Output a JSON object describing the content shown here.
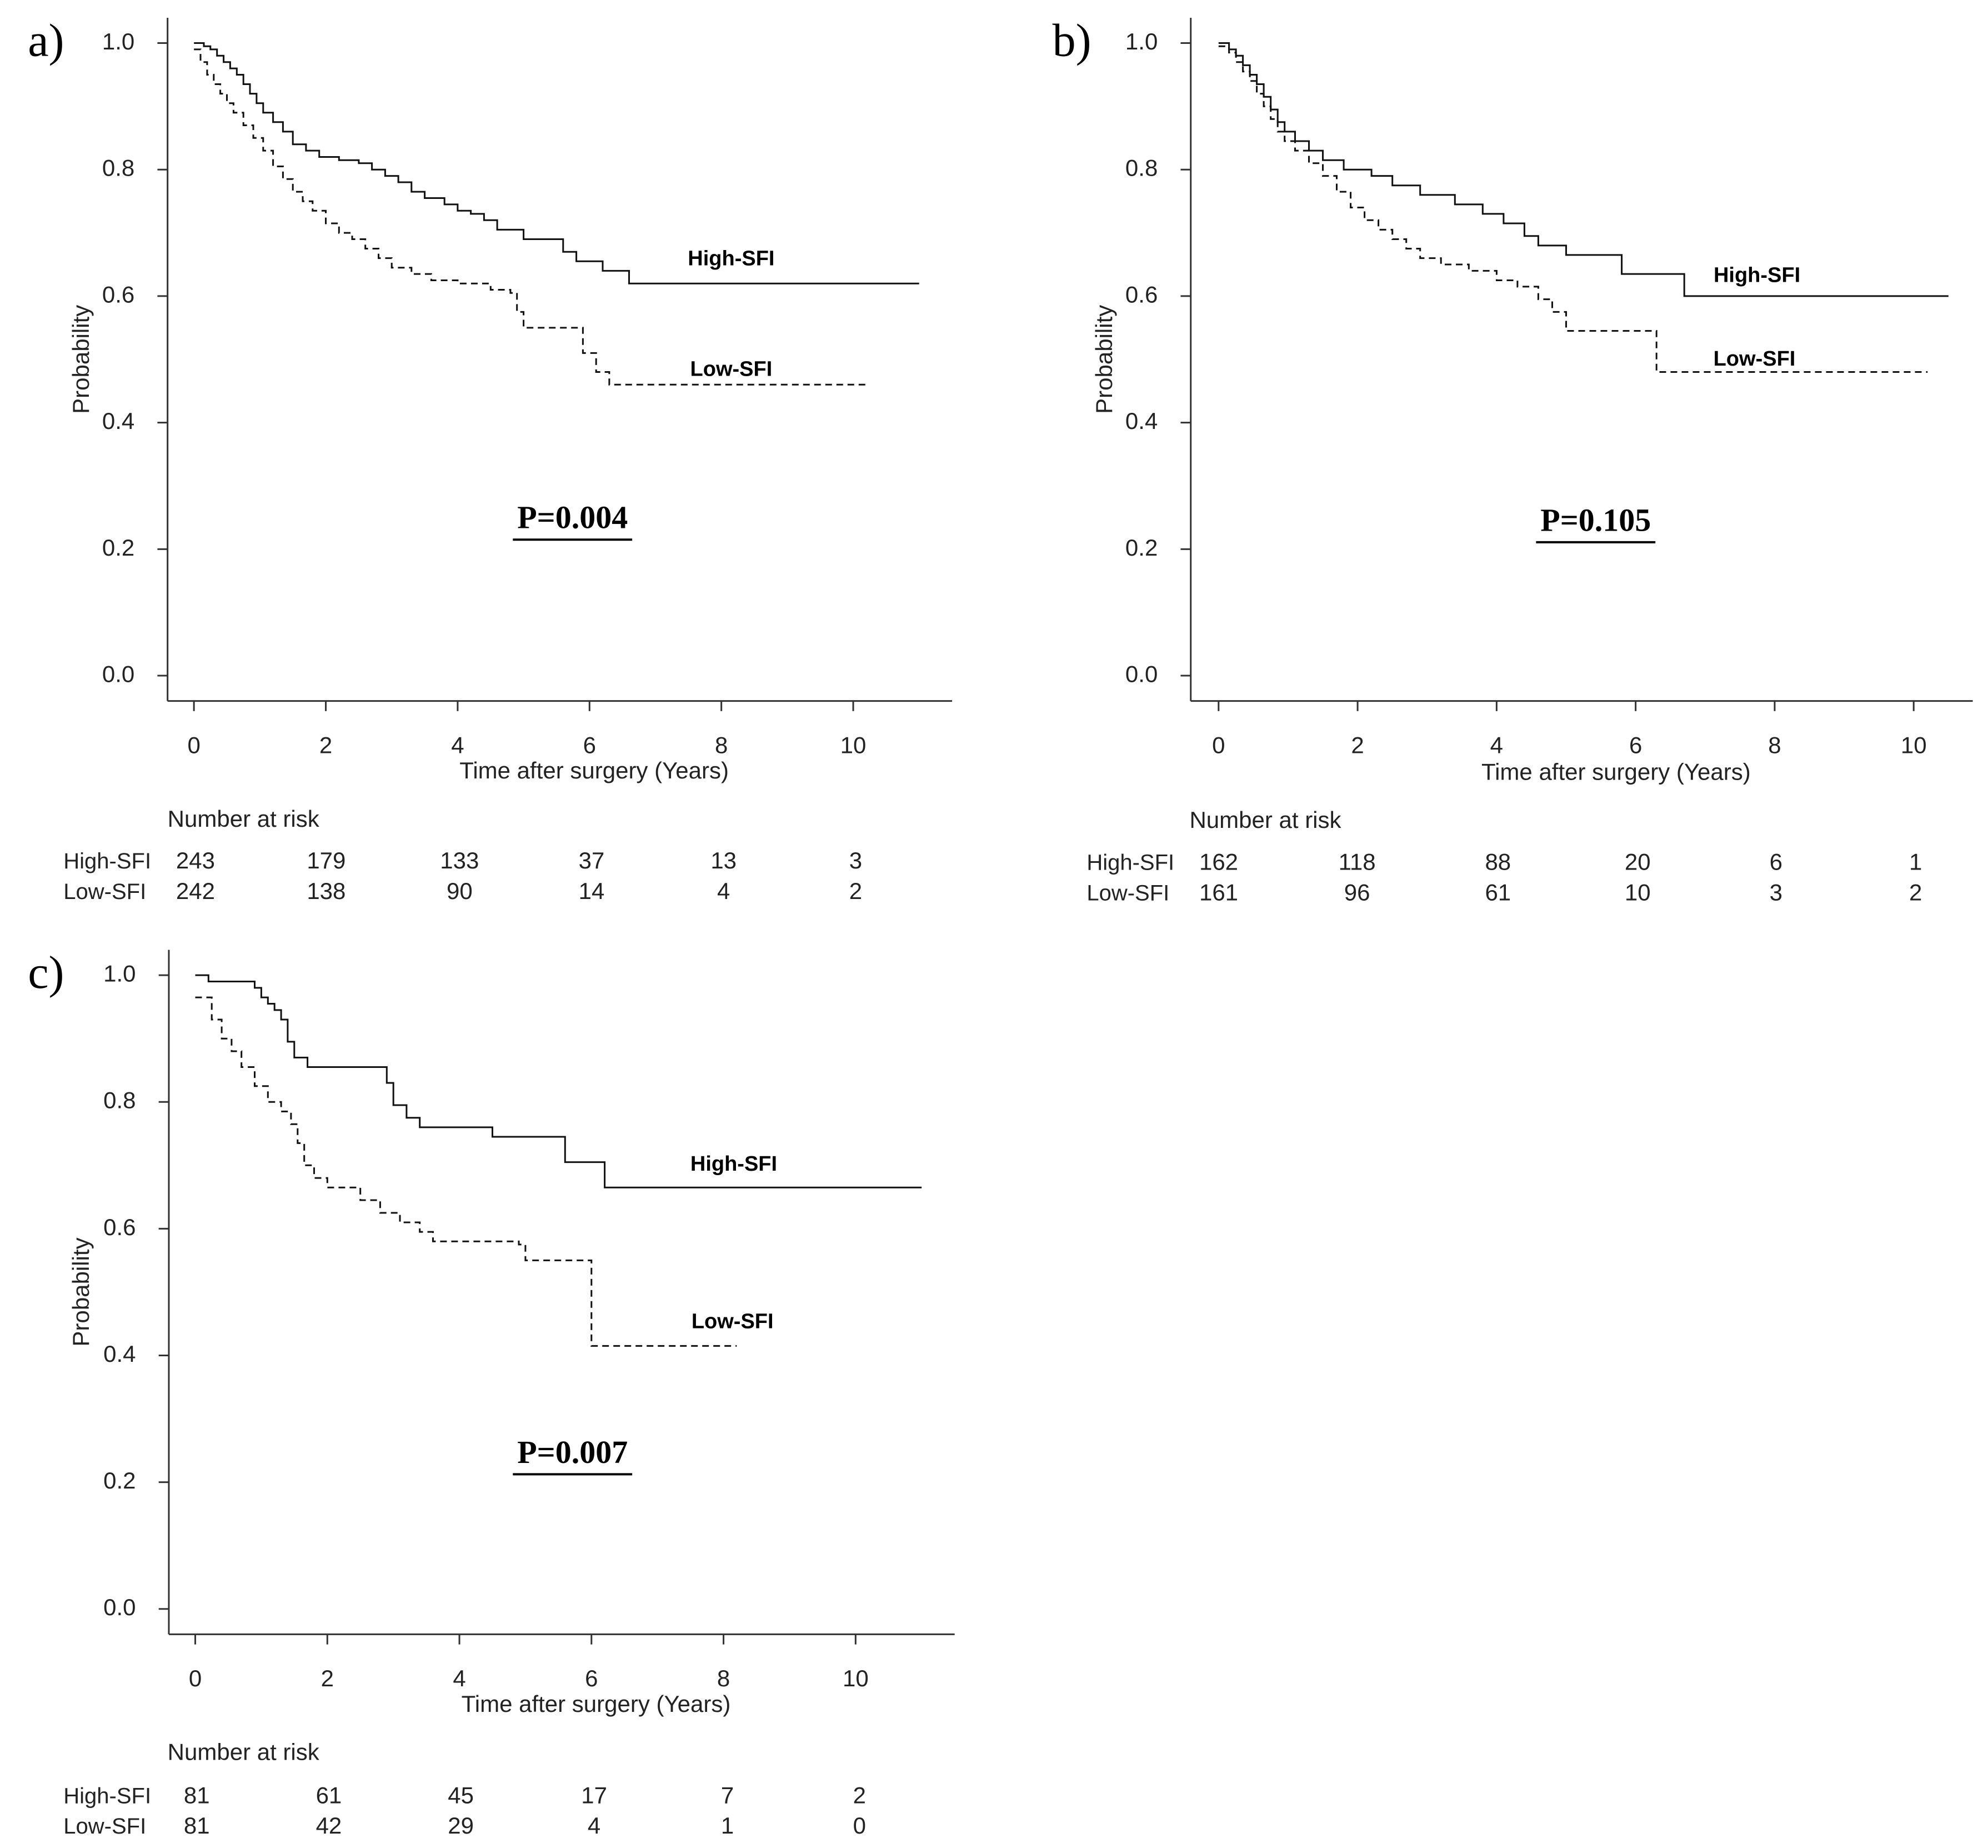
{
  "chart_data": [
    {
      "type": "line",
      "panel_label": "a)",
      "xlabel": "Time after surgery (Years)",
      "ylabel": "Probability",
      "xlim": [
        -0.4,
        11.5
      ],
      "ylim": [
        -0.04,
        1.04
      ],
      "x_ticks": [
        0,
        2,
        4,
        6,
        8,
        10
      ],
      "y_ticks": [
        "0.0",
        "0.2",
        "0.4",
        "0.6",
        "0.8",
        "1.0"
      ],
      "p_value": "P=0.004",
      "series": [
        {
          "name": "High-SFI",
          "style": "solid",
          "x": [
            0,
            0.15,
            0.25,
            0.35,
            0.45,
            0.55,
            0.65,
            0.75,
            0.85,
            0.95,
            1.05,
            1.2,
            1.35,
            1.5,
            1.7,
            1.9,
            2.2,
            2.5,
            2.7,
            2.9,
            3.1,
            3.3,
            3.5,
            3.8,
            4.0,
            4.2,
            4.4,
            4.6,
            5.0,
            5.6,
            5.8,
            6.2,
            6.6,
            11.0
          ],
          "y": [
            1.0,
            0.995,
            0.99,
            0.98,
            0.97,
            0.96,
            0.95,
            0.935,
            0.92,
            0.905,
            0.89,
            0.875,
            0.86,
            0.84,
            0.83,
            0.82,
            0.815,
            0.81,
            0.8,
            0.79,
            0.78,
            0.765,
            0.755,
            0.745,
            0.735,
            0.73,
            0.72,
            0.705,
            0.69,
            0.67,
            0.655,
            0.64,
            0.62,
            0.62
          ]
        },
        {
          "name": "Low-SFI",
          "style": "dashed",
          "x": [
            0,
            0.1,
            0.2,
            0.3,
            0.4,
            0.5,
            0.6,
            0.75,
            0.9,
            1.05,
            1.2,
            1.35,
            1.5,
            1.65,
            1.8,
            2.0,
            2.2,
            2.4,
            2.6,
            2.8,
            3.0,
            3.3,
            3.6,
            4.0,
            4.5,
            4.8,
            4.9,
            5.0,
            5.9,
            6.1,
            6.3,
            10.2
          ],
          "y": [
            0.99,
            0.97,
            0.95,
            0.935,
            0.92,
            0.905,
            0.89,
            0.87,
            0.85,
            0.83,
            0.805,
            0.785,
            0.765,
            0.75,
            0.735,
            0.715,
            0.7,
            0.69,
            0.675,
            0.66,
            0.645,
            0.635,
            0.625,
            0.62,
            0.61,
            0.605,
            0.575,
            0.55,
            0.51,
            0.48,
            0.46,
            0.46
          ]
        }
      ],
      "risk_table": {
        "title": "Number at risk",
        "rows": [
          {
            "label": "High-SFI",
            "values": [
              "243",
              "179",
              "133",
              "37",
              "13",
              "3"
            ]
          },
          {
            "label": "Low-SFI",
            "values": [
              "242",
              "138",
              "90",
              "14",
              "4",
              "2"
            ]
          }
        ]
      }
    },
    {
      "type": "line",
      "panel_label": "b)",
      "xlabel": "Time after surgery (Years)",
      "ylabel": "Probability",
      "xlim": [
        -0.4,
        10.85
      ],
      "ylim": [
        -0.04,
        1.04
      ],
      "x_ticks": [
        0,
        2,
        4,
        6,
        8,
        10
      ],
      "y_ticks": [
        "0.0",
        "0.2",
        "0.4",
        "0.6",
        "0.8",
        "1.0"
      ],
      "p_value": "P=0.105",
      "series": [
        {
          "name": "High-SFI",
          "style": "solid",
          "x": [
            0,
            0.15,
            0.25,
            0.35,
            0.45,
            0.55,
            0.65,
            0.75,
            0.85,
            0.95,
            1.1,
            1.3,
            1.5,
            1.8,
            2.2,
            2.5,
            2.9,
            3.4,
            3.8,
            4.1,
            4.4,
            4.6,
            5.0,
            5.8,
            6.7,
            10.5
          ],
          "y": [
            1.0,
            0.99,
            0.98,
            0.965,
            0.95,
            0.935,
            0.915,
            0.895,
            0.875,
            0.86,
            0.845,
            0.83,
            0.815,
            0.8,
            0.79,
            0.775,
            0.76,
            0.745,
            0.73,
            0.715,
            0.695,
            0.68,
            0.665,
            0.635,
            0.6,
            0.6
          ]
        },
        {
          "name": "Low-SFI",
          "style": "dashed",
          "x": [
            0,
            0.15,
            0.25,
            0.35,
            0.45,
            0.55,
            0.65,
            0.75,
            0.85,
            0.95,
            1.1,
            1.3,
            1.5,
            1.7,
            1.9,
            2.1,
            2.3,
            2.5,
            2.7,
            2.9,
            3.2,
            3.6,
            4.0,
            4.3,
            4.6,
            4.8,
            5.0,
            6.3,
            10.2
          ],
          "y": [
            0.995,
            0.985,
            0.97,
            0.955,
            0.94,
            0.92,
            0.9,
            0.88,
            0.86,
            0.845,
            0.83,
            0.81,
            0.79,
            0.765,
            0.74,
            0.72,
            0.705,
            0.69,
            0.675,
            0.66,
            0.65,
            0.64,
            0.625,
            0.615,
            0.595,
            0.575,
            0.545,
            0.48,
            0.48
          ]
        }
      ],
      "risk_table": {
        "title": "Number at risk",
        "rows": [
          {
            "label": "High-SFI",
            "values": [
              "162",
              "118",
              "88",
              "20",
              "6",
              "1"
            ]
          },
          {
            "label": "Low-SFI",
            "values": [
              "161",
              "96",
              "61",
              "10",
              "3",
              "2"
            ]
          }
        ]
      }
    },
    {
      "type": "line",
      "panel_label": "c)",
      "xlabel": "Time after surgery (Years)",
      "ylabel": "Probability",
      "xlim": [
        -0.4,
        11.5
      ],
      "ylim": [
        -0.04,
        1.04
      ],
      "x_ticks": [
        0,
        2,
        4,
        6,
        8,
        10
      ],
      "y_ticks": [
        "0.0",
        "0.2",
        "0.4",
        "0.6",
        "0.8",
        "1.0"
      ],
      "p_value": "P=0.007",
      "series": [
        {
          "name": "High-SFI",
          "style": "solid",
          "x": [
            0,
            0.2,
            0.9,
            1.0,
            1.1,
            1.2,
            1.3,
            1.4,
            1.5,
            1.7,
            2.9,
            3.0,
            3.2,
            3.4,
            4.5,
            5.6,
            6.2,
            11.0
          ],
          "y": [
            1.0,
            0.99,
            0.98,
            0.965,
            0.955,
            0.945,
            0.93,
            0.895,
            0.87,
            0.855,
            0.83,
            0.795,
            0.775,
            0.76,
            0.745,
            0.705,
            0.665,
            0.665
          ]
        },
        {
          "name": "Low-SFI",
          "style": "dashed",
          "x": [
            0,
            0.25,
            0.4,
            0.55,
            0.7,
            0.9,
            1.1,
            1.3,
            1.45,
            1.55,
            1.65,
            1.8,
            2.0,
            2.5,
            2.8,
            3.1,
            3.4,
            3.6,
            4.9,
            5.0,
            6.0,
            8.2
          ],
          "y": [
            0.965,
            0.93,
            0.9,
            0.88,
            0.855,
            0.825,
            0.8,
            0.785,
            0.765,
            0.735,
            0.7,
            0.68,
            0.665,
            0.645,
            0.625,
            0.61,
            0.595,
            0.58,
            0.575,
            0.55,
            0.415,
            0.415
          ]
        }
      ],
      "risk_table": {
        "title": "Number at risk",
        "rows": [
          {
            "label": "High-SFI",
            "values": [
              "81",
              "61",
              "45",
              "17",
              "7",
              "2"
            ]
          },
          {
            "label": "Low-SFI",
            "values": [
              "81",
              "42",
              "29",
              "4",
              "1",
              "0"
            ]
          }
        ]
      }
    }
  ]
}
